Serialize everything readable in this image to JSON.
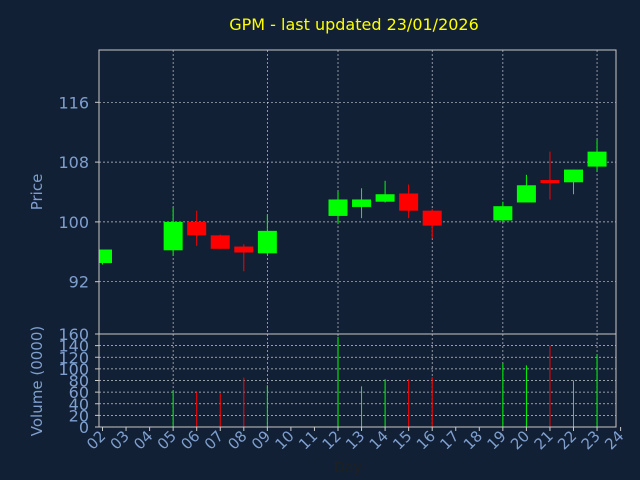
{
  "chart_data": {
    "type": "candlestick",
    "title": "GPM - last updated 23/01/2026",
    "xlabel": "Day",
    "price_panel": {
      "ylabel": "Price",
      "ylim": [
        85,
        123
      ],
      "yticks": [
        92,
        100,
        108,
        116
      ],
      "grid": true
    },
    "volume_panel": {
      "ylabel": "Volume (0000)",
      "ylim": [
        0,
        160
      ],
      "yticks": [
        0,
        20,
        40,
        60,
        80,
        100,
        120,
        140,
        160
      ],
      "grid": true
    },
    "x_ticks": [
      "02",
      "03",
      "04",
      "05",
      "06",
      "07",
      "08",
      "09",
      "10",
      "11",
      "12",
      "13",
      "14",
      "15",
      "16",
      "17",
      "18",
      "19",
      "20",
      "21",
      "22",
      "23",
      "24"
    ],
    "colors": {
      "up": "#00ff00",
      "down": "#ff0000",
      "title": "#ffff00",
      "axis_text": "#7f9fcf",
      "background": "#122035",
      "frame": "#c8c8c8"
    },
    "candles": [
      {
        "day": "02",
        "open": 94.5,
        "high": 96.3,
        "low": 94.3,
        "close": 96.3,
        "volume": 0
      },
      {
        "day": "05",
        "open": 96.2,
        "high": 102.0,
        "low": 95.5,
        "close": 100.0,
        "volume": 63
      },
      {
        "day": "06",
        "open": 100.0,
        "high": 101.5,
        "low": 96.8,
        "close": 98.2,
        "volume": 60
      },
      {
        "day": "07",
        "open": 98.2,
        "high": 98.3,
        "low": 96.4,
        "close": 96.4,
        "volume": 58
      },
      {
        "day": "08",
        "open": 96.7,
        "high": 97.0,
        "low": 93.4,
        "close": 95.9,
        "volume": 85
      },
      {
        "day": "09",
        "open": 95.8,
        "high": 101.0,
        "low": 95.6,
        "close": 98.8,
        "volume": 72
      },
      {
        "day": "12",
        "open": 100.8,
        "high": 104.0,
        "low": 99.7,
        "close": 103.0,
        "volume": 155
      },
      {
        "day": "13",
        "open": 102.0,
        "high": 104.5,
        "low": 100.5,
        "close": 103.0,
        "volume": 70
      },
      {
        "day": "14",
        "open": 102.7,
        "high": 105.5,
        "low": 102.6,
        "close": 103.7,
        "volume": 82
      },
      {
        "day": "15",
        "open": 103.8,
        "high": 105.0,
        "low": 100.5,
        "close": 101.5,
        "volume": 82
      },
      {
        "day": "16",
        "open": 101.5,
        "high": 101.7,
        "low": 97.8,
        "close": 99.5,
        "volume": 86
      },
      {
        "day": "19",
        "open": 100.2,
        "high": 102.7,
        "low": 100.0,
        "close": 102.1,
        "volume": 110
      },
      {
        "day": "20",
        "open": 102.6,
        "high": 106.3,
        "low": 102.6,
        "close": 104.9,
        "volume": 106
      },
      {
        "day": "21",
        "open": 105.6,
        "high": 109.4,
        "low": 103.0,
        "close": 105.3,
        "volume": 140
      },
      {
        "day": "22",
        "open": 105.3,
        "high": 107.0,
        "low": 103.7,
        "close": 107.0,
        "volume": 80
      },
      {
        "day": "23",
        "open": 107.4,
        "high": 111.0,
        "low": 106.7,
        "close": 109.4,
        "volume": 125
      }
    ]
  }
}
